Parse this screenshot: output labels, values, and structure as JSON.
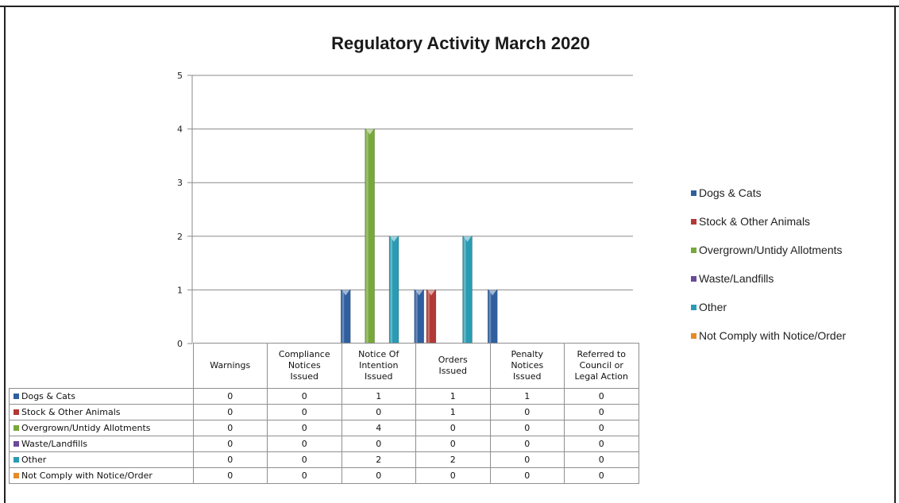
{
  "chart_data": {
    "type": "bar",
    "title": "Regulatory Activity March 2020",
    "categories": [
      "Warnings",
      "Compliance Notices Issued",
      "Notice Of Intention Issued",
      "Orders Issued",
      "Penalty Notices Issued",
      "Referred to Council or Legal Action"
    ],
    "category_lines": [
      [
        "Warnings"
      ],
      [
        "Compliance",
        "Notices",
        "Issued"
      ],
      [
        "Notice Of",
        "Intention",
        "Issued"
      ],
      [
        "Orders",
        "Issued"
      ],
      [
        "Penalty",
        "Notices",
        "Issued"
      ],
      [
        "Referred to",
        "Council or",
        "Legal Action"
      ]
    ],
    "series": [
      {
        "name": "Dogs & Cats",
        "color": "#2f5f9e",
        "values": [
          0,
          0,
          1,
          1,
          1,
          0
        ]
      },
      {
        "name": "Stock & Other Animals",
        "color": "#b23a36",
        "values": [
          0,
          0,
          0,
          1,
          0,
          0
        ]
      },
      {
        "name": "Overgrown/Untidy Allotments",
        "color": "#78a83a",
        "values": [
          0,
          0,
          4,
          0,
          0,
          0
        ]
      },
      {
        "name": "Waste/Landfills",
        "color": "#6a4a9a",
        "values": [
          0,
          0,
          0,
          0,
          0,
          0
        ]
      },
      {
        "name": "Other",
        "color": "#2a9bb3",
        "values": [
          0,
          0,
          2,
          2,
          0,
          0
        ]
      },
      {
        "name": "Not Comply with Notice/Order",
        "color": "#e58a2a",
        "values": [
          0,
          0,
          0,
          0,
          0,
          0
        ]
      }
    ],
    "yticks": [
      0,
      1,
      2,
      3,
      4,
      5
    ],
    "ylim": [
      0,
      5
    ],
    "grid": true,
    "legend_position": "right",
    "data_table": true
  }
}
